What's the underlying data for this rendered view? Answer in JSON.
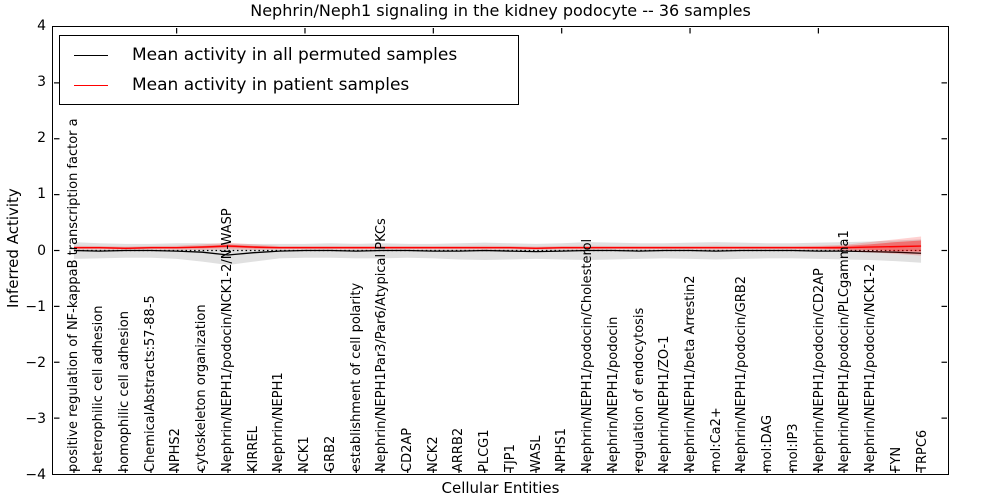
{
  "title": "Nephrin/Neph1 signaling in the kidney podocyte -- 36 samples",
  "axes": {
    "ylabel": "Inferred Activity",
    "xlabel": "Cellular Entities",
    "ytick_labels": [
      "4",
      "3",
      "2",
      "1",
      "0",
      "−1",
      "−2",
      "−3",
      "−4"
    ]
  },
  "legend": {
    "items": [
      {
        "label": "Mean activity in all permuted samples",
        "color": "#000000"
      },
      {
        "label": "Mean activity in patient samples",
        "color": "#ff0000"
      }
    ]
  },
  "chart_data": {
    "type": "line",
    "title": "Nephrin/Neph1 signaling in the kidney podocyte -- 36 samples",
    "xlabel": "Cellular Entities",
    "ylabel": "Inferred Activity",
    "ylim": [
      -4,
      4
    ],
    "grid": false,
    "legend_position": "upper left",
    "zero_line": {
      "y": 0,
      "style": "dotted",
      "color": "#000000"
    },
    "categories": [
      "positive regulation of NF-kappaB transcription factor a",
      "heterophilic cell adhesion",
      "homophilic cell adhesion",
      "ChemicalAbstracts:57-88-5",
      "NPHS2",
      "cytoskeleton organization",
      "Nephrin/NEPH1/podocin/NCK1-2/N-WASP",
      "KIRREL",
      "Nephrin/NEPH1",
      "NCK1",
      "GRB2",
      "establishment of cell polarity",
      "Nephrin/NEPH1Par3/Par6/Atypical PKCs",
      "CD2AP",
      "NCK2",
      "ARRB2",
      "PLCG1",
      "TJP1",
      "WASL",
      "NPHS1",
      "Nephrin/NEPH1/podocin/Cholesterol",
      "Nephrin/NEPH1/podocin",
      "regulation of endocytosis",
      "Nephrin/NEPH1/ZO-1",
      "Nephrin/NEPH1/beta Arrestin2",
      "mol:Ca2+",
      "Nephrin/NEPH1/podocin/GRB2",
      "mol:DAG",
      "mol:IP3",
      "Nephrin/NEPH1/podocin/CD2AP",
      "Nephrin/NEPH1/podocin/PLCgamma1",
      "Nephrin/NEPH1/podocin/NCK1-2",
      "FYN",
      "TRPC6"
    ],
    "series": [
      {
        "name": "Mean activity in all permuted samples",
        "color": "#000000",
        "width": 1.3,
        "values": [
          0,
          -0.01,
          0,
          0,
          -0.01,
          -0.03,
          -0.08,
          -0.04,
          -0.01,
          0,
          0,
          -0.01,
          0,
          0,
          -0.01,
          -0.01,
          0,
          -0.01,
          -0.02,
          -0.01,
          0,
          0,
          -0.01,
          0,
          0,
          -0.01,
          0,
          0,
          0,
          -0.01,
          -0.01,
          -0.02,
          -0.03,
          -0.05
        ]
      },
      {
        "name": "Mean activity in patient samples",
        "color": "#ff0000",
        "width": 1.4,
        "values": [
          0.05,
          0.05,
          0.04,
          0.05,
          0.05,
          0.06,
          0.08,
          0.06,
          0.05,
          0.05,
          0.05,
          0.05,
          0.05,
          0.05,
          0.05,
          0.05,
          0.05,
          0.05,
          0.04,
          0.05,
          0.05,
          0.05,
          0.05,
          0.05,
          0.05,
          0.05,
          0.05,
          0.05,
          0.05,
          0.05,
          0.05,
          0.06,
          0.07,
          0.08
        ]
      }
    ],
    "bands": [
      {
        "name": "permuted-std-band",
        "fill": "rgba(0,0,0,0.12)",
        "upper": [
          0.15,
          0.13,
          0.12,
          0.12,
          0.13,
          0.13,
          0.12,
          0.12,
          0.12,
          0.12,
          0.13,
          0.12,
          0.13,
          0.12,
          0.12,
          0.13,
          0.14,
          0.13,
          0.12,
          0.13,
          0.15,
          0.14,
          0.13,
          0.13,
          0.14,
          0.15,
          0.14,
          0.13,
          0.13,
          0.14,
          0.15,
          0.16,
          0.18,
          0.2
        ],
        "lower": [
          -0.15,
          -0.14,
          -0.13,
          -0.13,
          -0.15,
          -0.2,
          -0.26,
          -0.2,
          -0.14,
          -0.13,
          -0.13,
          -0.14,
          -0.14,
          -0.13,
          -0.14,
          -0.16,
          -0.17,
          -0.16,
          -0.15,
          -0.16,
          -0.17,
          -0.16,
          -0.15,
          -0.14,
          -0.15,
          -0.16,
          -0.15,
          -0.14,
          -0.14,
          -0.15,
          -0.16,
          -0.17,
          -0.19,
          -0.22
        ]
      },
      {
        "name": "patient-outer-band",
        "fill": "rgba(255,0,0,0.18)",
        "upper": [
          0.085,
          0.08,
          0.07,
          0.08,
          0.085,
          0.11,
          0.14,
          0.11,
          0.08,
          0.08,
          0.08,
          0.08,
          0.08,
          0.08,
          0.08,
          0.08,
          0.085,
          0.08,
          0.07,
          0.08,
          0.085,
          0.08,
          0.08,
          0.08,
          0.08,
          0.085,
          0.08,
          0.08,
          0.08,
          0.085,
          0.1,
          0.15,
          0.2,
          0.25
        ],
        "lower": [
          0.015,
          0.02,
          0.01,
          0.02,
          0.015,
          0.01,
          0.02,
          0.01,
          0.02,
          0.02,
          0.02,
          0.02,
          0.02,
          0.02,
          0.02,
          0.02,
          0.015,
          0.02,
          0.01,
          0.02,
          0.015,
          0.02,
          0.02,
          0.02,
          0.02,
          0.015,
          0.02,
          0.02,
          0.02,
          0.015,
          0.0,
          -0.03,
          -0.06,
          -0.09
        ]
      },
      {
        "name": "patient-inner-band",
        "fill": "rgba(255,0,0,0.38)",
        "upper": [
          0.065,
          0.065,
          0.055,
          0.065,
          0.065,
          0.08,
          0.105,
          0.08,
          0.065,
          0.065,
          0.065,
          0.065,
          0.065,
          0.065,
          0.065,
          0.065,
          0.065,
          0.065,
          0.055,
          0.065,
          0.065,
          0.065,
          0.065,
          0.065,
          0.065,
          0.065,
          0.065,
          0.065,
          0.065,
          0.07,
          0.08,
          0.11,
          0.15,
          0.18
        ],
        "lower": [
          0.035,
          0.035,
          0.025,
          0.035,
          0.035,
          0.04,
          0.055,
          0.04,
          0.035,
          0.035,
          0.035,
          0.035,
          0.035,
          0.035,
          0.035,
          0.035,
          0.035,
          0.035,
          0.025,
          0.035,
          0.035,
          0.035,
          0.035,
          0.035,
          0.035,
          0.035,
          0.035,
          0.035,
          0.035,
          0.03,
          0.02,
          0.01,
          -0.01,
          -0.02
        ]
      }
    ],
    "top_tick_indices": [
      4,
      9,
      14,
      19,
      24,
      29
    ]
  }
}
